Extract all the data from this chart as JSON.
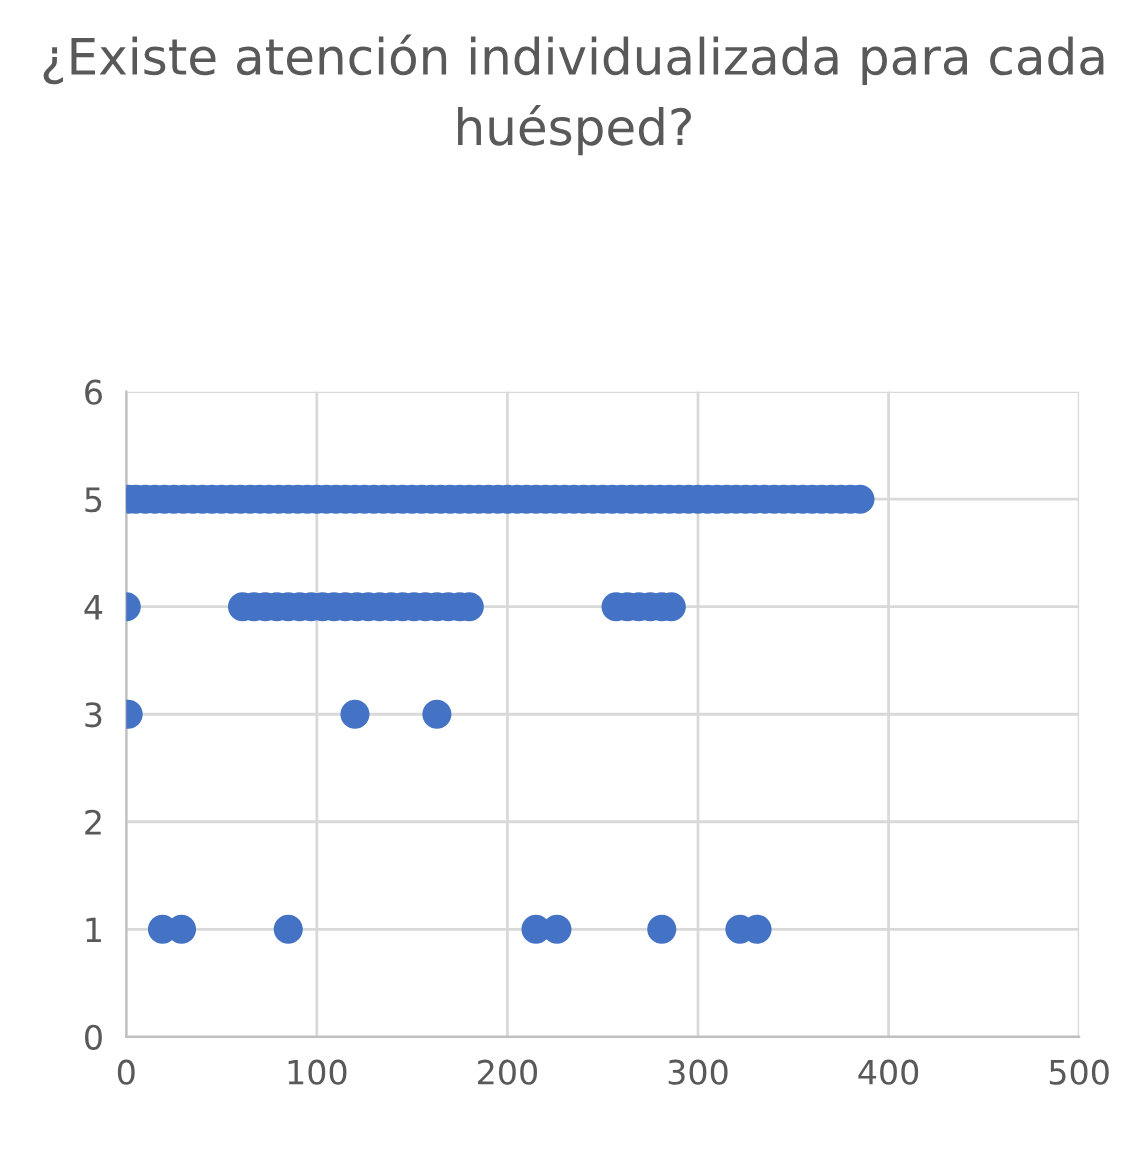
{
  "chart_data": {
    "type": "scatter",
    "title": "¿Existe atención individualizada para cada huésped?",
    "x": [
      1,
      5,
      10,
      15,
      20,
      25,
      30,
      35,
      40,
      45,
      50,
      55,
      60,
      65,
      70,
      75,
      80,
      85,
      90,
      95,
      100,
      105,
      110,
      115,
      120,
      125,
      130,
      135,
      140,
      145,
      150,
      155,
      160,
      165,
      170,
      175,
      180,
      185,
      190,
      195,
      200,
      205,
      210,
      215,
      220,
      225,
      230,
      235,
      240,
      245,
      250,
      255,
      260,
      265,
      270,
      275,
      280,
      285,
      290,
      295,
      300,
      305,
      310,
      315,
      320,
      325,
      330,
      335,
      340,
      345,
      350,
      355,
      360,
      365,
      370,
      375,
      380,
      385,
      0,
      61,
      67,
      73,
      79,
      85,
      91,
      97,
      103,
      109,
      115,
      121,
      127,
      133,
      139,
      145,
      151,
      157,
      163,
      169,
      175,
      180,
      257,
      263,
      269,
      275,
      281,
      286,
      1,
      120,
      163,
      19,
      29,
      85,
      215,
      226,
      281,
      322,
      331
    ],
    "values": [
      5,
      5,
      5,
      5,
      5,
      5,
      5,
      5,
      5,
      5,
      5,
      5,
      5,
      5,
      5,
      5,
      5,
      5,
      5,
      5,
      5,
      5,
      5,
      5,
      5,
      5,
      5,
      5,
      5,
      5,
      5,
      5,
      5,
      5,
      5,
      5,
      5,
      5,
      5,
      5,
      5,
      5,
      5,
      5,
      5,
      5,
      5,
      5,
      5,
      5,
      5,
      5,
      5,
      5,
      5,
      5,
      5,
      5,
      5,
      5,
      5,
      5,
      5,
      5,
      5,
      5,
      5,
      5,
      5,
      5,
      5,
      5,
      5,
      5,
      5,
      5,
      5,
      5,
      4,
      4,
      4,
      4,
      4,
      4,
      4,
      4,
      4,
      4,
      4,
      4,
      4,
      4,
      4,
      4,
      4,
      4,
      4,
      4,
      4,
      4,
      4,
      4,
      4,
      4,
      4,
      4,
      3,
      3,
      3,
      1,
      1,
      1,
      1,
      1,
      1,
      1,
      1
    ],
    "color": "#4472c4",
    "marker": "circle",
    "xlim": [
      0,
      500
    ],
    "xticks": [
      0,
      100,
      200,
      300,
      400,
      500
    ],
    "ylim": [
      0,
      6
    ],
    "yticks": [
      0,
      1,
      2,
      3,
      4,
      5,
      6
    ],
    "grid": true,
    "legend": false
  }
}
